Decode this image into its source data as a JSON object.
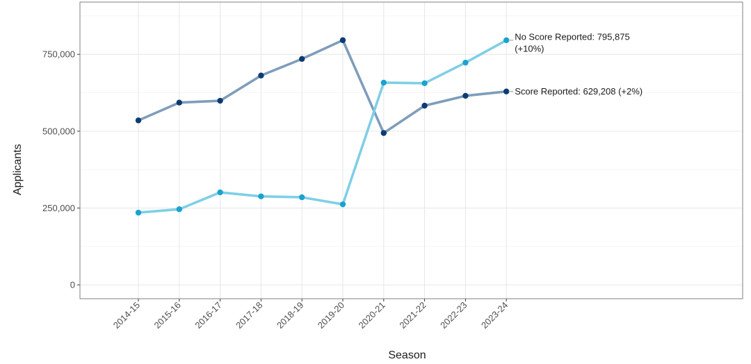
{
  "chart_data": {
    "type": "line",
    "title": "",
    "xlabel": "Season",
    "ylabel": "Applicants",
    "categories": [
      "2014-15",
      "2015-16",
      "2016-17",
      "2017-18",
      "2018-19",
      "2019-20",
      "2020-21",
      "2021-22",
      "2022-23",
      "2023-24"
    ],
    "ylim": [
      -45000,
      920000
    ],
    "yticks": [
      0,
      250000,
      500000,
      750000
    ],
    "ytick_labels": [
      "0",
      "250,000",
      "500,000",
      "750,000"
    ],
    "grid": true,
    "legend": "none",
    "series": [
      {
        "values": [
          535000,
          593000,
          599000,
          681000,
          735000,
          796000,
          494000,
          583000,
          615000,
          629208
        ],
        "line_color": "#7f9dbb",
        "point_color": "#0c3b73",
        "label_lines": [
          "Score Reported: 629,208 (+2%)"
        ]
      },
      {
        "values": [
          235000,
          246000,
          301000,
          288000,
          285000,
          262000,
          658000,
          656000,
          723000,
          795875
        ],
        "line_color": "#7fcfe6",
        "point_color": "#1aa3cf",
        "label_lines": [
          "No Score Reported: 795,875",
          "(+10%)"
        ]
      }
    ]
  }
}
